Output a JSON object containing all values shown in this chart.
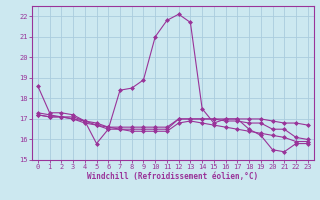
{
  "x": [
    0,
    1,
    2,
    3,
    4,
    5,
    6,
    7,
    8,
    9,
    10,
    11,
    12,
    13,
    14,
    15,
    16,
    17,
    18,
    19,
    20,
    21,
    22,
    23
  ],
  "line1": [
    18.6,
    17.3,
    17.3,
    17.2,
    16.9,
    15.8,
    16.5,
    18.4,
    18.5,
    18.9,
    21.0,
    21.8,
    22.1,
    21.7,
    17.5,
    16.8,
    17.0,
    17.0,
    16.5,
    16.2,
    15.5,
    15.4,
    15.8,
    15.8
  ],
  "line2": [
    17.3,
    17.2,
    17.1,
    17.1,
    16.9,
    16.7,
    16.5,
    16.5,
    16.4,
    16.4,
    16.4,
    16.4,
    16.8,
    16.9,
    16.8,
    16.7,
    16.6,
    16.5,
    16.4,
    16.3,
    16.2,
    16.1,
    15.9,
    15.9
  ],
  "line3": [
    17.2,
    17.1,
    17.1,
    17.0,
    16.9,
    16.8,
    16.6,
    16.6,
    16.6,
    16.6,
    16.6,
    16.6,
    17.0,
    17.0,
    17.0,
    17.0,
    17.0,
    17.0,
    17.0,
    17.0,
    16.9,
    16.8,
    16.8,
    16.7
  ],
  "line4": [
    17.2,
    17.1,
    17.1,
    17.0,
    16.8,
    16.7,
    16.6,
    16.5,
    16.5,
    16.5,
    16.5,
    16.5,
    17.0,
    17.0,
    17.0,
    17.0,
    16.9,
    16.9,
    16.8,
    16.8,
    16.5,
    16.5,
    16.1,
    16.0
  ],
  "line_color": "#993399",
  "bg_color": "#cce8f0",
  "grid_color": "#aaccdd",
  "xlabel": "Windchill (Refroidissement éolien,°C)",
  "ylim": [
    15,
    22.5
  ],
  "xlim": [
    -0.5,
    23.5
  ],
  "yticks": [
    15,
    16,
    17,
    18,
    19,
    20,
    21,
    22
  ],
  "xticks": [
    0,
    1,
    2,
    3,
    4,
    5,
    6,
    7,
    8,
    9,
    10,
    11,
    12,
    13,
    14,
    15,
    16,
    17,
    18,
    19,
    20,
    21,
    22,
    23
  ]
}
